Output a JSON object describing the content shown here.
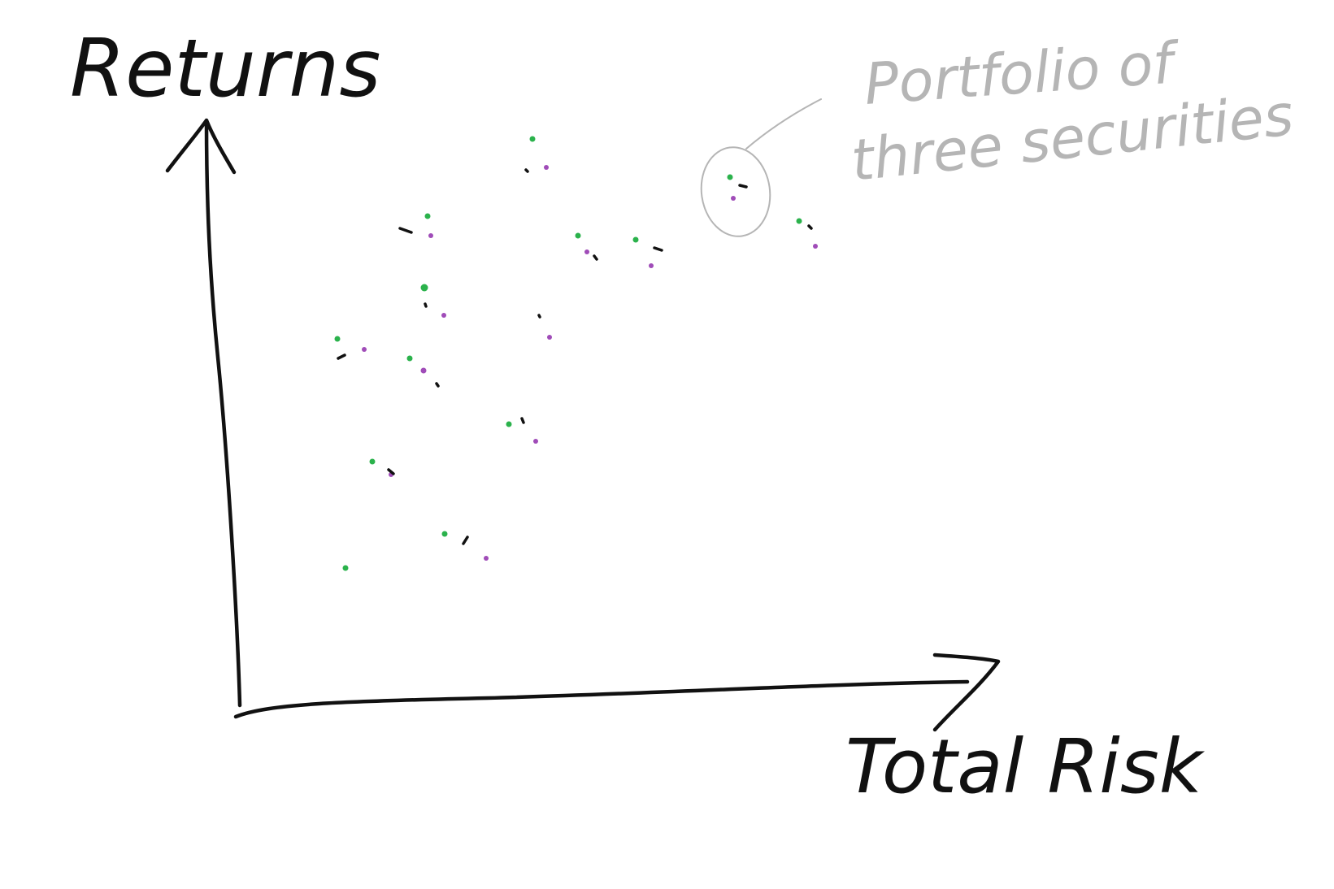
{
  "y_label": "Returns",
  "x_label": "Total Risk",
  "annotation": [
    "Portfolio of",
    "three securities"
  ],
  "colors": {
    "ink": "#111111",
    "security_a": "#2bb24c",
    "security_b": "#a04cb8",
    "security_c": "#111111",
    "note": "#b5b5b5"
  }
}
